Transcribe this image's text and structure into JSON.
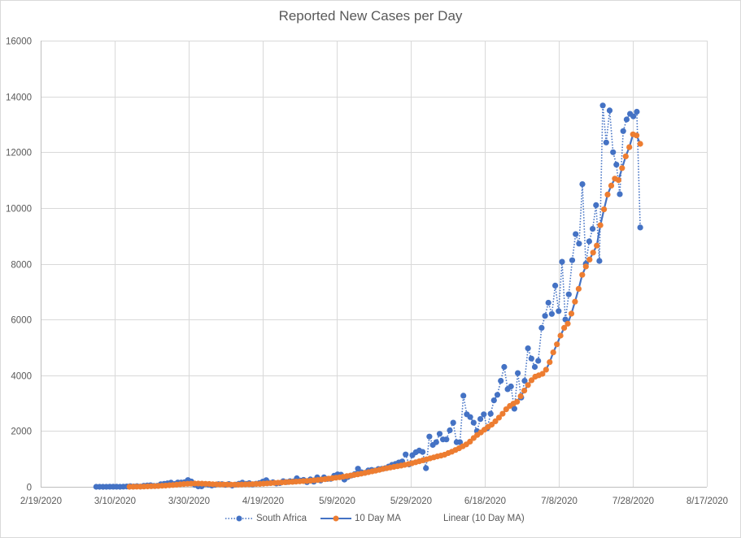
{
  "chart_data": {
    "type": "line",
    "title": "Reported New Cases per Day",
    "xlabel": "",
    "ylabel": "",
    "ylim": [
      0,
      16000
    ],
    "yticks": [
      "0",
      "2000",
      "4000",
      "6000",
      "8000",
      "10000",
      "12000",
      "14000",
      "16000"
    ],
    "ytick_values": [
      0,
      2000,
      4000,
      6000,
      8000,
      10000,
      12000,
      14000,
      16000
    ],
    "xlim": [
      "2/19/2020",
      "8/17/2020"
    ],
    "xticks": [
      "2/19/2020",
      "3/10/2020",
      "3/30/2020",
      "4/19/2020",
      "5/9/2020",
      "5/29/2020",
      "6/18/2020",
      "7/8/2020",
      "7/28/2020",
      "8/17/2020"
    ],
    "xtick_days": [
      0,
      20,
      40,
      60,
      80,
      100,
      120,
      140,
      160,
      180
    ],
    "grid": true,
    "legend_position": "bottom",
    "x_start_date": "3/5/2020",
    "x_start_day": 15,
    "series": [
      {
        "name": "South Africa",
        "style": "dotted-with-markers",
        "color": "#4472c4",
        "values": [
          1,
          0,
          0,
          1,
          2,
          3,
          3,
          0,
          6,
          12,
          23,
          13,
          24,
          8,
          38,
          46,
          54,
          34,
          38,
          93,
          107,
          125,
          150,
          100,
          155,
          154,
          162,
          243,
          188,
          69,
          15,
          17,
          89,
          76,
          48,
          71,
          95,
          96,
          66,
          99,
          45,
          78,
          110,
          150,
          104,
          130,
          82,
          112,
          133,
          187,
          240,
          140,
          164,
          120,
          133,
          200,
          170,
          200,
          192,
          307,
          225,
          247,
          166,
          266,
          183,
          338,
          225,
          338,
          282,
          286,
          400,
          447,
          434,
          260,
          351,
          402,
          455,
          650,
          523,
          500,
          587,
          607,
          582,
          637,
          643,
          667,
          726,
          787,
          819,
          870,
          908,
          1160,
          800,
          1133,
          1240,
          1300,
          1250,
          668,
          1800,
          1500,
          1600,
          1900,
          1700,
          1700,
          2026,
          2300,
          1600,
          1600,
          3267,
          2600,
          2500,
          2300,
          2000,
          2430,
          2600,
          2100,
          2620,
          3100,
          3300,
          3800,
          4300,
          3500,
          3600,
          2800,
          4078,
          3200,
          3800,
          4966,
          4600,
          4300,
          4518,
          5700,
          6130,
          6600,
          6200,
          7217,
          6300,
          8070,
          6000,
          6900,
          8124,
          9060,
          8720,
          10853,
          8000,
          8800,
          9250,
          10100,
          8100,
          13674,
          12348,
          13497,
          12000,
          11554,
          10496,
          12757,
          13172,
          13373,
          13285,
          13449,
          9300
        ]
      },
      {
        "name": "10 Day MA",
        "style": "line-with-markers",
        "color": "#ed7d31",
        "line_color": "#4472c4",
        "start_day": 24,
        "values": [
          1,
          3,
          5,
          7,
          10,
          14,
          19,
          24,
          30,
          37,
          45,
          54,
          64,
          75,
          86,
          98,
          108,
          114,
          117,
          117,
          113,
          108,
          101,
          94,
          88,
          84,
          83,
          83,
          80,
          78,
          79,
          82,
          86,
          90,
          96,
          101,
          106,
          113,
          121,
          131,
          139,
          147,
          155,
          164,
          171,
          179,
          186,
          194,
          203,
          210,
          220,
          232,
          244,
          258,
          275,
          291,
          308,
          325,
          342,
          361,
          382,
          403,
          425,
          447,
          471,
          497,
          525,
          553,
          580,
          610,
          640,
          666,
          690,
          713,
          737,
          762,
          788,
          815,
          846,
          880,
          914,
          950,
          985,
          1020,
          1055,
          1090,
          1120,
          1150,
          1210,
          1260,
          1320,
          1380,
          1450,
          1520,
          1620,
          1750,
          1860,
          1950,
          2050,
          2150,
          2230,
          2350,
          2480,
          2620,
          2780,
          2900,
          2980,
          3050,
          3250,
          3450,
          3650,
          3820,
          3950,
          4000,
          4050,
          4200,
          4470,
          4820,
          5110,
          5420,
          5700,
          5850,
          6210,
          6640,
          7100,
          7600,
          7900,
          8150,
          8400,
          8650,
          9380,
          9950,
          10480,
          10800,
          11050,
          11000,
          11430,
          11850,
          12180,
          12640,
          12600,
          12300
        ]
      },
      {
        "name": "Linear (10 Day MA)",
        "style": "trendline",
        "color": "#4472c4",
        "values": []
      }
    ]
  },
  "legend": {
    "items": [
      "South Africa",
      "10 Day MA",
      "Linear (10 Day MA)"
    ]
  },
  "colors": {
    "blue": "#4472c4",
    "orange": "#ed7d31",
    "grid": "#d9d9d9",
    "text": "#595959"
  }
}
